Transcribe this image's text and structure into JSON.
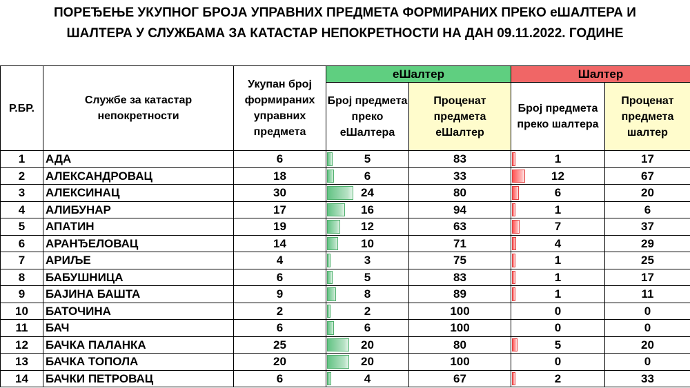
{
  "title": {
    "line1": "ПОРЕЂЕЊЕ УКУПНОГ БРОЈА УПРАВНИХ ПРЕДМЕТА ФОРМИРАНИХ ПРЕКО еШАЛТЕРА И",
    "line2": "ШАЛТЕРА У СЛУЖБАМА ЗА КАТАСТАР НЕПОКРЕТНОСТИ НА ДАН 09.11.2022. ГОДИНЕ"
  },
  "headers": {
    "rbr": "Р.БР.",
    "office": "Службе за катастар непокретности",
    "total": "Укупан број формираних управних предмета",
    "eshalter_group": "еШалтер",
    "eshalter_count": "Број предмета преко еШалтера",
    "eshalter_percent": "Проценат предмета еШалтер",
    "shalter_group": "Шалтер",
    "shalter_count": "Број предмета преко шалтера",
    "shalter_percent": "Проценат предмета шалтер"
  },
  "colors": {
    "eshalter_header": "#5fcf80",
    "shalter_header": "#f06666",
    "percent_header": "#fffccc",
    "green_bar": "#63c384",
    "red_bar": "#ff5555"
  },
  "rows": [
    {
      "rbr": "1",
      "office": "АДА",
      "total": "6",
      "e_count": "5",
      "e_pct": "83",
      "s_count": "1",
      "s_pct": "17"
    },
    {
      "rbr": "2",
      "office": "АЛЕКСАНДРОВАЦ",
      "total": "18",
      "e_count": "6",
      "e_pct": "33",
      "s_count": "12",
      "s_pct": "67"
    },
    {
      "rbr": "3",
      "office": "АЛЕКСИНАЦ",
      "total": "30",
      "e_count": "24",
      "e_pct": "80",
      "s_count": "6",
      "s_pct": "20"
    },
    {
      "rbr": "4",
      "office": "АЛИБУНАР",
      "total": "17",
      "e_count": "16",
      "e_pct": "94",
      "s_count": "1",
      "s_pct": "6"
    },
    {
      "rbr": "5",
      "office": "АПАТИН",
      "total": "19",
      "e_count": "12",
      "e_pct": "63",
      "s_count": "7",
      "s_pct": "37"
    },
    {
      "rbr": "6",
      "office": "АРАНЂЕЛОВАЦ",
      "total": "14",
      "e_count": "10",
      "e_pct": "71",
      "s_count": "4",
      "s_pct": "29"
    },
    {
      "rbr": "7",
      "office": "АРИЉЕ",
      "total": "4",
      "e_count": "3",
      "e_pct": "75",
      "s_count": "1",
      "s_pct": "25"
    },
    {
      "rbr": "8",
      "office": "БАБУШНИЦА",
      "total": "6",
      "e_count": "5",
      "e_pct": "83",
      "s_count": "1",
      "s_pct": "17"
    },
    {
      "rbr": "9",
      "office": "БАЈИНА БАШТА",
      "total": "9",
      "e_count": "8",
      "e_pct": "89",
      "s_count": "1",
      "s_pct": "11"
    },
    {
      "rbr": "10",
      "office": "БАТОЧИНА",
      "total": "2",
      "e_count": "2",
      "e_pct": "100",
      "s_count": "0",
      "s_pct": "0"
    },
    {
      "rbr": "11",
      "office": "БАЧ",
      "total": "6",
      "e_count": "6",
      "e_pct": "100",
      "s_count": "0",
      "s_pct": "0"
    },
    {
      "rbr": "12",
      "office": "БАЧКА ПАЛАНКА",
      "total": "25",
      "e_count": "20",
      "e_pct": "80",
      "s_count": "5",
      "s_pct": "20"
    },
    {
      "rbr": "13",
      "office": "БАЧКА ТОПОЛА",
      "total": "20",
      "e_count": "20",
      "e_pct": "100",
      "s_count": "0",
      "s_pct": "0"
    },
    {
      "rbr": "14",
      "office": "БАЧКИ ПЕТРОВАЦ",
      "total": "6",
      "e_count": "4",
      "e_pct": "67",
      "s_count": "2",
      "s_pct": "33"
    }
  ]
}
